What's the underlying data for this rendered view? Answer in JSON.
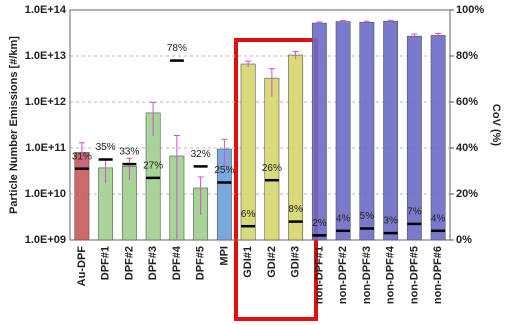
{
  "chart_data": {
    "type": "bar",
    "y_label": "Particle Number Emissions [#/km]",
    "y2_label": "CoV (%)",
    "categories": [
      "Au-DPF",
      "DPF#1",
      "DPF#2",
      "DPF#3",
      "DPF#4",
      "DPF#5",
      "MPI",
      "GDI#1",
      "GDI#2",
      "GDI#3",
      "non-DPF#1",
      "non-DPF#2",
      "non-DPF#3",
      "non-DPF#4",
      "non-DPF#5",
      "non-DPF#6"
    ],
    "values": [
      80000000000,
      37000000000,
      40000000000,
      580000000000,
      67000000000,
      13500000000,
      95000000000,
      6700000000000,
      3300000000000,
      10500000000000,
      52000000000000,
      56000000000000,
      54000000000000,
      57000000000000,
      27000000000000,
      28000000000000
    ],
    "errors": [
      50000000000,
      20000000000,
      20000000000,
      400000000000,
      120000000000,
      10000000000,
      60000000000,
      1000000000000,
      2000000000000,
      2000000000000,
      3000000000000,
      3000000000000,
      3000000000000,
      3000000000000,
      3000000000000,
      3000000000000
    ],
    "colors": [
      "#c65a5a",
      "#9fcf8e",
      "#9fcf8e",
      "#9fcf8e",
      "#9fcf8e",
      "#9fcf8e",
      "#6f9fd8",
      "#d6d66c",
      "#d6d66c",
      "#d6d66c",
      "#6b6bc6",
      "#6b6bc6",
      "#6b6bc6",
      "#6b6bc6",
      "#6b6bc6",
      "#6b6bc6"
    ],
    "error_color": "#d050d0",
    "cov_values": [
      31,
      35,
      33,
      27,
      78,
      32,
      25,
      6,
      26,
      8,
      2,
      4,
      5,
      3,
      7,
      4
    ],
    "cov_labels": [
      "31%",
      "35%",
      "33%",
      "27%",
      "78%",
      "32%",
      "25%",
      "6%",
      "26%",
      "8%",
      "2%",
      "4%",
      "5%",
      "3%",
      "7%",
      "4%"
    ],
    "log_scale": true,
    "grid": true,
    "ylim": [
      1000000000,
      100000000000000
    ],
    "yticks": [
      {
        "value": 1000000000,
        "label": "1.0E+09"
      },
      {
        "value": 10000000000,
        "label": "1.0E+10"
      },
      {
        "value": 100000000000,
        "label": "1.0E+11"
      },
      {
        "value": 1000000000000,
        "label": "1.0E+12"
      },
      {
        "value": 10000000000000,
        "label": "1.0E+13"
      },
      {
        "value": 100000000000000,
        "label": "1.0E+14"
      }
    ],
    "y2lim": [
      0,
      100
    ],
    "y2ticks": [
      {
        "value": 0,
        "label": "0%"
      },
      {
        "value": 20,
        "label": "20%"
      },
      {
        "value": 40,
        "label": "40%"
      },
      {
        "value": 60,
        "label": "60%"
      },
      {
        "value": 80,
        "label": "80%"
      },
      {
        "value": 100,
        "label": "100%"
      }
    ]
  }
}
